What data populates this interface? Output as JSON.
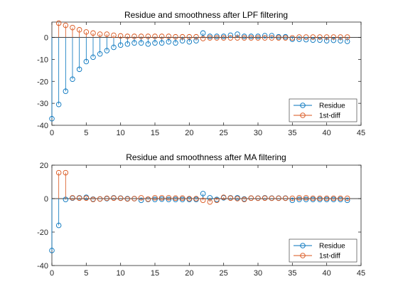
{
  "colors": {
    "residue": "#0072BD",
    "diff": "#D95319",
    "axis": "#262626",
    "zero_line": "#000000"
  },
  "chart_data": [
    {
      "type": "stem",
      "title": "Residue and smoothness after LPF filtering",
      "xlim": [
        0,
        45
      ],
      "ylim": [
        -40,
        7
      ],
      "xticks": [
        0,
        5,
        10,
        15,
        20,
        25,
        30,
        35,
        40,
        45
      ],
      "yticks": [
        -40,
        -30,
        -20,
        -10,
        0
      ],
      "legend_location": "bottom-right",
      "series": [
        {
          "name": "Residue",
          "color": "#0072BD",
          "x": [
            0,
            1,
            2,
            3,
            4,
            5,
            6,
            7,
            8,
            9,
            10,
            11,
            12,
            13,
            14,
            15,
            16,
            17,
            18,
            19,
            20,
            21,
            22,
            23,
            24,
            25,
            26,
            27,
            28,
            29,
            30,
            31,
            32,
            33,
            34,
            35,
            36,
            37,
            38,
            39,
            40,
            41,
            42,
            43
          ],
          "values": [
            -37,
            -30.5,
            -24.5,
            -19,
            -14.5,
            -11,
            -9,
            -7.5,
            -6,
            -4.5,
            -3.5,
            -3,
            -2.5,
            -2.5,
            -3,
            -2.5,
            -2.5,
            -2,
            -2.5,
            -1.5,
            -2,
            -1.5,
            2,
            0.5,
            0.5,
            0.5,
            1,
            1.5,
            0.5,
            0.5,
            0.5,
            0.8,
            0.8,
            0.3,
            0.3,
            -0.8,
            -0.8,
            -1,
            -1.2,
            -1.2,
            -1.5,
            -1.3,
            -1.5,
            -1.8
          ]
        },
        {
          "name": "1st-diff",
          "color": "#D95319",
          "x": [
            1,
            2,
            3,
            4,
            5,
            6,
            7,
            8,
            9,
            10,
            11,
            12,
            13,
            14,
            15,
            16,
            17,
            18,
            19,
            20,
            21,
            22,
            23,
            24,
            25,
            26,
            27,
            28,
            29,
            30,
            31,
            32,
            33,
            34,
            35,
            36,
            37,
            38,
            39,
            40,
            41,
            42,
            43
          ],
          "values": [
            6.5,
            5.5,
            4.5,
            3.5,
            2.5,
            2,
            1.5,
            1.5,
            1,
            0.7,
            0.5,
            0.5,
            0.5,
            0.5,
            0.5,
            0.5,
            0.5,
            0.3,
            0.3,
            0.3,
            0.3,
            -0.5,
            -0.2,
            -0.2,
            -0.2,
            -0.2,
            -0.2,
            -0.2,
            -0.2,
            -0.2,
            -0.2,
            -0.2,
            -0.2,
            -0.2,
            -0.2,
            0.2,
            0.2,
            0.2,
            0.2,
            0.2,
            0.2,
            0.2,
            0.2
          ]
        }
      ]
    },
    {
      "type": "stem",
      "title": "Residue and smoothness after MA filtering",
      "xlim": [
        0,
        45
      ],
      "ylim": [
        -40,
        20
      ],
      "xticks": [
        0,
        5,
        10,
        15,
        20,
        25,
        30,
        35,
        40,
        45
      ],
      "yticks": [
        -40,
        -20,
        0,
        20
      ],
      "legend_location": "bottom-right",
      "series": [
        {
          "name": "Residue",
          "color": "#0072BD",
          "x": [
            0,
            1,
            2,
            3,
            4,
            5,
            6,
            7,
            8,
            9,
            10,
            11,
            12,
            13,
            14,
            15,
            16,
            17,
            18,
            19,
            20,
            21,
            22,
            23,
            24,
            25,
            26,
            27,
            28,
            29,
            30,
            31,
            32,
            33,
            34,
            35,
            36,
            37,
            38,
            39,
            40,
            41,
            42,
            43
          ],
          "values": [
            -31,
            -16,
            -0.5,
            0.3,
            0.5,
            0.8,
            -0.3,
            -0.2,
            0,
            0.5,
            0.3,
            0,
            0,
            -1,
            -0.5,
            -0.5,
            -0.3,
            -0.5,
            -0.5,
            -0.5,
            -0.5,
            -0.5,
            3,
            0.5,
            -0.5,
            0.5,
            0.5,
            0.5,
            -0.2,
            0.3,
            0.3,
            0.5,
            0.3,
            0.3,
            0.3,
            -1,
            -0.5,
            -0.5,
            -0.5,
            -0.5,
            -0.5,
            -0.5,
            -0.5,
            -1
          ]
        },
        {
          "name": "1st-diff",
          "color": "#D95319",
          "x": [
            1,
            2,
            3,
            4,
            5,
            6,
            7,
            8,
            9,
            10,
            11,
            12,
            13,
            14,
            15,
            16,
            17,
            18,
            19,
            20,
            21,
            22,
            23,
            24,
            25,
            26,
            27,
            28,
            29,
            30,
            31,
            32,
            33,
            34,
            35,
            36,
            37,
            38,
            39,
            40,
            41,
            42,
            43
          ],
          "values": [
            15.5,
            15.5,
            0.5,
            0.3,
            0.3,
            -0.5,
            -0.2,
            0.2,
            0.3,
            0.2,
            -0.2,
            0,
            0.5,
            -0.3,
            0.5,
            0.5,
            0.5,
            0.3,
            0.3,
            0,
            0,
            -1,
            -2,
            -1,
            0.8,
            0.3,
            0,
            -0.5,
            0.3,
            0.2,
            0.3,
            0.2,
            0.2,
            0.2,
            0.2,
            0.5,
            0.5,
            0.2,
            0.2,
            0.2,
            0.2,
            0.2,
            0.2
          ]
        }
      ]
    }
  ]
}
